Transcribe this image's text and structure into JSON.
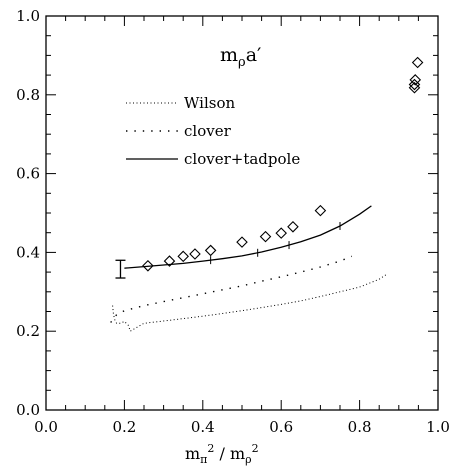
{
  "chart_data": {
    "type": "scatter",
    "title": "m",
    "title_sub": "ρ",
    "title_suffix": "a′",
    "xlabel": {
      "m1": "m",
      "s1": "π",
      "p1": "2",
      "sep": " / ",
      "m2": "m",
      "s2": "ρ",
      "p2": "2"
    },
    "ylabel": "",
    "xlim": [
      0,
      1
    ],
    "ylim": [
      0,
      1
    ],
    "xticks": [
      "0.0",
      "0.2",
      "0.4",
      "0.6",
      "0.8",
      "1.0"
    ],
    "yticks": [
      "0.0",
      "0.2",
      "0.4",
      "0.6",
      "0.8",
      "1.0"
    ],
    "legend_placement": "upper-middle",
    "legend": [
      {
        "label": "Wilson",
        "style": "dotted-fine"
      },
      {
        "label": "clover",
        "style": "dotted-sparse"
      },
      {
        "label": "clover+tadpole",
        "style": "solid"
      }
    ],
    "series": [
      {
        "name": "Wilson",
        "style": "dotted-fine",
        "x": [
          0.17,
          0.172,
          0.175,
          0.18,
          0.19,
          0.2,
          0.21,
          0.215,
          0.25,
          0.3,
          0.35,
          0.4,
          0.45,
          0.5,
          0.55,
          0.6,
          0.65,
          0.7,
          0.75,
          0.8,
          0.85,
          0.87
        ],
        "y": [
          0.265,
          0.245,
          0.23,
          0.22,
          0.22,
          0.225,
          0.215,
          0.2,
          0.22,
          0.226,
          0.232,
          0.238,
          0.245,
          0.252,
          0.26,
          0.268,
          0.277,
          0.288,
          0.3,
          0.312,
          0.332,
          0.345
        ]
      },
      {
        "name": "clover",
        "style": "dotted-sparse",
        "x": [
          0.165,
          0.18,
          0.2,
          0.25,
          0.3,
          0.35,
          0.4,
          0.45,
          0.5,
          0.55,
          0.6,
          0.65,
          0.7,
          0.75,
          0.78
        ],
        "y": [
          0.222,
          0.242,
          0.252,
          0.265,
          0.275,
          0.285,
          0.295,
          0.305,
          0.315,
          0.327,
          0.338,
          0.35,
          0.363,
          0.378,
          0.39
        ]
      },
      {
        "name": "clover+tadpole",
        "style": "solid",
        "x": [
          0.2,
          0.25,
          0.3,
          0.35,
          0.4,
          0.45,
          0.5,
          0.55,
          0.6,
          0.65,
          0.7,
          0.75,
          0.8,
          0.83
        ],
        "y": [
          0.36,
          0.364,
          0.368,
          0.372,
          0.378,
          0.384,
          0.391,
          0.401,
          0.413,
          0.427,
          0.444,
          0.467,
          0.497,
          0.518
        ]
      }
    ],
    "solid_ticks_x": [
      0.42,
      0.54,
      0.62,
      0.75
    ],
    "diamonds": {
      "x": [
        0.26,
        0.315,
        0.35,
        0.38,
        0.42,
        0.5,
        0.56,
        0.6,
        0.63,
        0.7,
        0.94,
        0.94,
        0.942,
        0.948
      ],
      "y": [
        0.366,
        0.378,
        0.39,
        0.396,
        0.405,
        0.426,
        0.44,
        0.449,
        0.465,
        0.506,
        0.818,
        0.826,
        0.838,
        0.882
      ]
    },
    "error_bar": {
      "x": 0.19,
      "y": 0.358,
      "low": 0.335,
      "high": 0.38
    }
  }
}
